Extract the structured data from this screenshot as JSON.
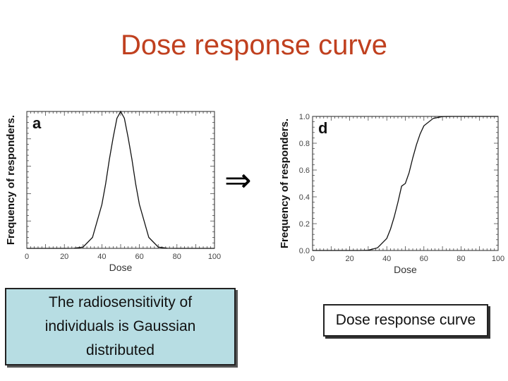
{
  "slide": {
    "title": "Dose response curve",
    "arrow_symbol": "⇒",
    "caption_left": "The radiosensitivity of individuals is Gaussian distributed",
    "caption_right": "Dose response curve"
  },
  "chart_data": [
    {
      "type": "line",
      "panel_label": "a",
      "xlabel": "Dose",
      "ylabel": "Frequency of responders.",
      "xlim": [
        0,
        100
      ],
      "ylim": [
        0,
        1
      ],
      "x_ticks": [
        "0",
        "20",
        "40",
        "60",
        "80",
        "100"
      ],
      "y_ticks": [],
      "grid": false,
      "series": [
        {
          "x": [
            0,
            10,
            20,
            25,
            30,
            35,
            40,
            42,
            44,
            46,
            48,
            50,
            52,
            54,
            56,
            58,
            60,
            65,
            70,
            75,
            80,
            90,
            100
          ],
          "y": [
            0,
            0,
            0,
            0.0004,
            0.01,
            0.08,
            0.32,
            0.47,
            0.65,
            0.81,
            0.95,
            1.0,
            0.95,
            0.81,
            0.65,
            0.47,
            0.32,
            0.08,
            0.01,
            0.0004,
            0,
            0,
            0
          ]
        }
      ]
    },
    {
      "type": "line",
      "panel_label": "d",
      "xlabel": "Dose",
      "ylabel": "Frequency of responders.",
      "xlim": [
        0,
        100
      ],
      "ylim": [
        0,
        1
      ],
      "x_ticks": [
        "0",
        "20",
        "40",
        "60",
        "80",
        "100"
      ],
      "y_ticks": [
        "0.0",
        "0.2",
        "0.4",
        "0.6",
        "0.8",
        "1.0"
      ],
      "grid": false,
      "series": [
        {
          "x": [
            0,
            20,
            25,
            30,
            35,
            40,
            42,
            44,
            46,
            48,
            50,
            52,
            54,
            56,
            58,
            60,
            65,
            70,
            75,
            80,
            100
          ],
          "y": [
            0,
            0,
            0.0001,
            0.002,
            0.02,
            0.09,
            0.16,
            0.25,
            0.36,
            0.48,
            0.5,
            0.58,
            0.69,
            0.79,
            0.87,
            0.93,
            0.985,
            0.999,
            1.0,
            1.0,
            1.0
          ]
        }
      ]
    }
  ]
}
